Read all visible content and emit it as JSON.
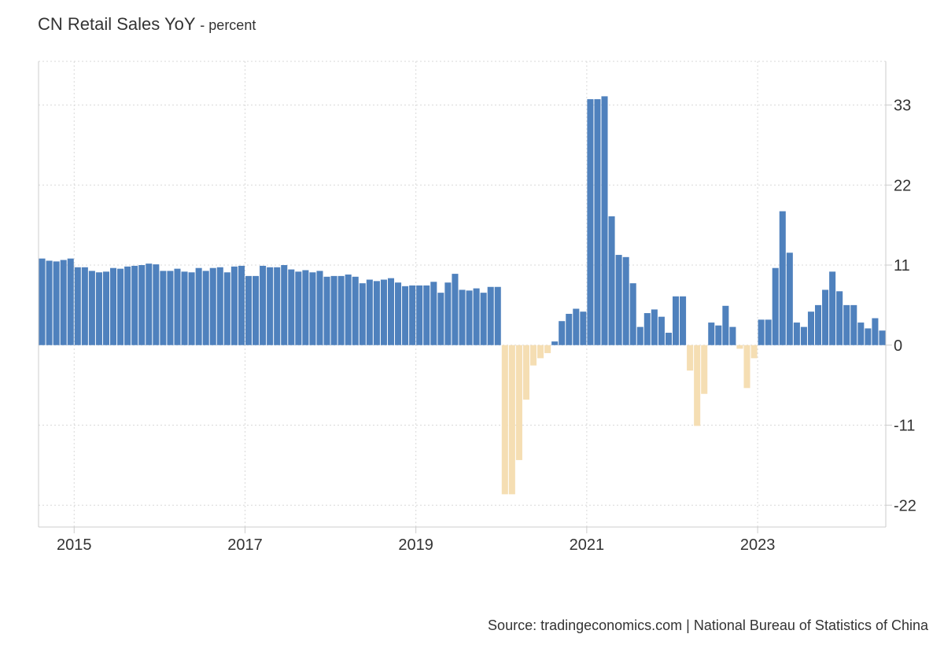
{
  "title": "CN Retail Sales YoY",
  "subtitle": "- percent",
  "source": "Source: tradingeconomics.com | National Bureau of Statistics of China",
  "chart_data": {
    "type": "bar",
    "title": "CN Retail Sales YoY",
    "subtitle": "percent",
    "ylim": [
      -25,
      39
    ],
    "yticks": [
      -22,
      -11,
      0,
      11,
      22,
      33
    ],
    "xticks": [
      {
        "label": "2015",
        "value": "2015-01"
      },
      {
        "label": "2017",
        "value": "2017-01"
      },
      {
        "label": "2019",
        "value": "2019-01"
      },
      {
        "label": "2021",
        "value": "2021-01"
      },
      {
        "label": "2023",
        "value": "2023-01"
      }
    ],
    "xlim": [
      "2014-08",
      "2024-07"
    ],
    "grid": true,
    "positive_color": "#4f81bd",
    "negative_color": "#f5deb3",
    "categories": [
      "2014-08",
      "2014-09",
      "2014-10",
      "2014-11",
      "2014-12",
      "2015-01",
      "2015-02",
      "2015-03",
      "2015-04",
      "2015-05",
      "2015-06",
      "2015-07",
      "2015-08",
      "2015-09",
      "2015-10",
      "2015-11",
      "2015-12",
      "2016-01",
      "2016-02",
      "2016-03",
      "2016-04",
      "2016-05",
      "2016-06",
      "2016-07",
      "2016-08",
      "2016-09",
      "2016-10",
      "2016-11",
      "2016-12",
      "2017-01",
      "2017-02",
      "2017-03",
      "2017-04",
      "2017-05",
      "2017-06",
      "2017-07",
      "2017-08",
      "2017-09",
      "2017-10",
      "2017-11",
      "2017-12",
      "2018-01",
      "2018-02",
      "2018-03",
      "2018-04",
      "2018-05",
      "2018-06",
      "2018-07",
      "2018-08",
      "2018-09",
      "2018-10",
      "2018-11",
      "2018-12",
      "2019-01",
      "2019-02",
      "2019-03",
      "2019-04",
      "2019-05",
      "2019-06",
      "2019-07",
      "2019-08",
      "2019-09",
      "2019-10",
      "2019-11",
      "2019-12",
      "2020-01",
      "2020-02",
      "2020-03",
      "2020-04",
      "2020-05",
      "2020-06",
      "2020-07",
      "2020-08",
      "2020-09",
      "2020-10",
      "2020-11",
      "2020-12",
      "2021-01",
      "2021-02",
      "2021-03",
      "2021-04",
      "2021-05",
      "2021-06",
      "2021-07",
      "2021-08",
      "2021-09",
      "2021-10",
      "2021-11",
      "2021-12",
      "2022-01",
      "2022-02",
      "2022-03",
      "2022-04",
      "2022-05",
      "2022-06",
      "2022-07",
      "2022-08",
      "2022-09",
      "2022-10",
      "2022-11",
      "2022-12",
      "2023-01",
      "2023-02",
      "2023-03",
      "2023-04",
      "2023-05",
      "2023-06",
      "2023-07",
      "2023-08",
      "2023-09",
      "2023-10",
      "2023-11",
      "2023-12",
      "2024-01",
      "2024-02",
      "2024-03",
      "2024-04",
      "2024-05",
      "2024-06"
    ],
    "values": [
      11.9,
      11.6,
      11.5,
      11.7,
      11.9,
      10.7,
      10.7,
      10.2,
      10.0,
      10.1,
      10.6,
      10.5,
      10.8,
      10.9,
      11.0,
      11.2,
      11.1,
      10.2,
      10.2,
      10.5,
      10.1,
      10.0,
      10.6,
      10.2,
      10.6,
      10.7,
      10.0,
      10.8,
      10.9,
      9.5,
      9.5,
      10.9,
      10.7,
      10.7,
      11.0,
      10.4,
      10.1,
      10.3,
      10.0,
      10.2,
      9.4,
      9.5,
      9.5,
      9.7,
      9.4,
      8.5,
      9.0,
      8.8,
      9.0,
      9.2,
      8.6,
      8.1,
      8.2,
      8.2,
      8.2,
      8.7,
      7.2,
      8.6,
      9.8,
      7.6,
      7.5,
      7.8,
      7.2,
      8.0,
      8.0,
      -20.5,
      -20.5,
      -15.8,
      -7.5,
      -2.8,
      -1.8,
      -1.1,
      0.5,
      3.3,
      4.3,
      5.0,
      4.6,
      33.8,
      33.8,
      34.2,
      17.7,
      12.4,
      12.1,
      8.5,
      2.5,
      4.4,
      4.9,
      3.9,
      1.7,
      6.7,
      6.7,
      -3.5,
      -11.1,
      -6.7,
      3.1,
      2.7,
      5.4,
      2.5,
      -0.5,
      -5.9,
      -1.8,
      3.5,
      3.5,
      10.6,
      18.4,
      12.7,
      3.1,
      2.5,
      4.6,
      5.5,
      7.6,
      10.1,
      7.4,
      5.5,
      5.5,
      3.1,
      2.3,
      3.7,
      2.0
    ]
  }
}
